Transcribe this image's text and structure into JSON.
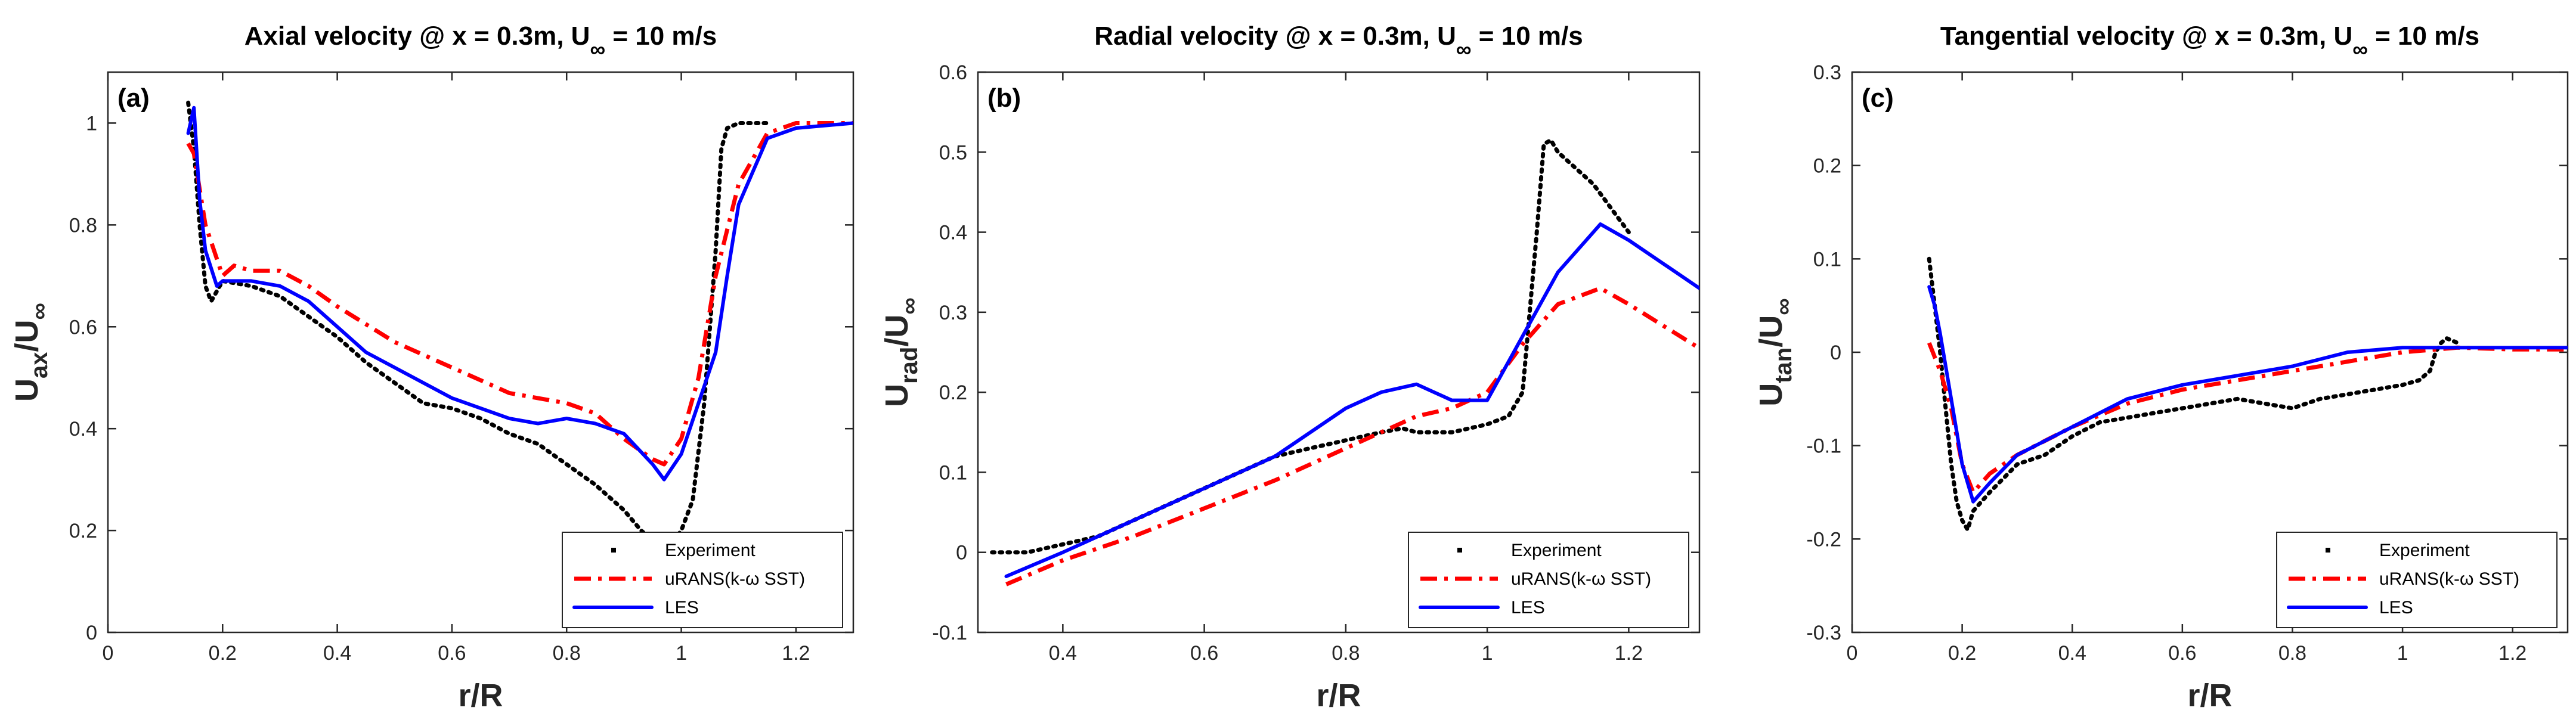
{
  "chart_data": [
    {
      "type": "line",
      "panel_label": "(a)",
      "title": "Axial velocity @ x = 0.3m, U",
      "title_sub": "∞",
      "title_end": " = 10 m/s",
      "xlabel": "r/R",
      "ylabel_main": "U",
      "ylabel_sub": "ax",
      "ylabel_mid": "/U",
      "ylabel_end": "∞",
      "xlim": [
        0,
        1.3
      ],
      "ylim": [
        0,
        1.1
      ],
      "xticks": [
        "0",
        "0.2",
        "0.4",
        "0.6",
        "0.8",
        "1",
        "1.2"
      ],
      "yticks": [
        "0",
        "0.2",
        "0.4",
        "0.6",
        "0.8",
        "1"
      ],
      "legend_position": "bottom-right",
      "series": [
        {
          "name": "Experiment",
          "style": "dotted",
          "color": "#000000",
          "x": [
            0.14,
            0.15,
            0.16,
            0.17,
            0.18,
            0.2,
            0.25,
            0.3,
            0.35,
            0.4,
            0.45,
            0.5,
            0.55,
            0.6,
            0.65,
            0.7,
            0.75,
            0.8,
            0.85,
            0.9,
            0.93,
            0.95,
            0.98,
            1.0,
            1.02,
            1.04,
            1.06,
            1.07,
            1.08,
            1.1,
            1.15
          ],
          "y": [
            1.04,
            0.95,
            0.8,
            0.68,
            0.65,
            0.69,
            0.68,
            0.66,
            0.62,
            0.58,
            0.53,
            0.49,
            0.45,
            0.44,
            0.42,
            0.39,
            0.37,
            0.33,
            0.29,
            0.24,
            0.2,
            0.18,
            0.17,
            0.2,
            0.26,
            0.45,
            0.75,
            0.95,
            0.99,
            1.0,
            1.0
          ]
        },
        {
          "name": "uRANS(k-ω SST)",
          "style": "dashdot",
          "color": "#ff0000",
          "x": [
            0.14,
            0.15,
            0.17,
            0.2,
            0.22,
            0.25,
            0.3,
            0.35,
            0.4,
            0.5,
            0.6,
            0.7,
            0.8,
            0.85,
            0.9,
            0.95,
            0.97,
            1.0,
            1.03,
            1.06,
            1.1,
            1.15,
            1.2,
            1.3
          ],
          "y": [
            0.96,
            0.94,
            0.8,
            0.7,
            0.72,
            0.71,
            0.71,
            0.68,
            0.64,
            0.57,
            0.52,
            0.47,
            0.45,
            0.43,
            0.38,
            0.34,
            0.33,
            0.38,
            0.5,
            0.7,
            0.88,
            0.98,
            1.0,
            1.0
          ]
        },
        {
          "name": "LES",
          "style": "solid",
          "color": "#0000ff",
          "x": [
            0.14,
            0.15,
            0.16,
            0.17,
            0.19,
            0.2,
            0.25,
            0.3,
            0.35,
            0.4,
            0.45,
            0.5,
            0.6,
            0.7,
            0.75,
            0.8,
            0.85,
            0.9,
            0.95,
            0.97,
            1.0,
            1.03,
            1.06,
            1.08,
            1.1,
            1.15,
            1.2,
            1.3
          ],
          "y": [
            0.98,
            1.03,
            0.85,
            0.75,
            0.68,
            0.69,
            0.69,
            0.68,
            0.65,
            0.6,
            0.55,
            0.52,
            0.46,
            0.42,
            0.41,
            0.42,
            0.41,
            0.39,
            0.33,
            0.3,
            0.35,
            0.45,
            0.55,
            0.7,
            0.84,
            0.97,
            0.99,
            1.0
          ]
        }
      ]
    },
    {
      "type": "line",
      "panel_label": "(b)",
      "title": "Radial velocity @ x = 0.3m, U",
      "title_sub": "∞",
      "title_end": " = 10 m/s",
      "xlabel": "r/R",
      "ylabel_main": "U",
      "ylabel_sub": "rad",
      "ylabel_mid": "/U",
      "ylabel_end": "∞",
      "xlim": [
        0.28,
        1.3
      ],
      "ylim": [
        -0.1,
        0.6
      ],
      "xticks": [
        "0.4",
        "0.6",
        "0.8",
        "1",
        "1.2"
      ],
      "yticks": [
        "-0.1",
        "0",
        "0.1",
        "0.2",
        "0.3",
        "0.4",
        "0.5",
        "0.6"
      ],
      "legend_position": "bottom-right",
      "series": [
        {
          "name": "Experiment",
          "style": "dotted",
          "color": "#000000",
          "x": [
            0.3,
            0.35,
            0.4,
            0.45,
            0.5,
            0.55,
            0.6,
            0.65,
            0.7,
            0.75,
            0.8,
            0.85,
            0.88,
            0.9,
            0.95,
            1.0,
            1.03,
            1.05,
            1.07,
            1.08,
            1.09,
            1.1,
            1.15,
            1.2
          ],
          "y": [
            0.0,
            0.0,
            0.01,
            0.02,
            0.04,
            0.06,
            0.08,
            0.1,
            0.12,
            0.13,
            0.14,
            0.15,
            0.155,
            0.15,
            0.15,
            0.16,
            0.17,
            0.2,
            0.4,
            0.51,
            0.515,
            0.5,
            0.46,
            0.4
          ]
        },
        {
          "name": "uRANS(k-ω SST)",
          "style": "dashdot",
          "color": "#ff0000",
          "x": [
            0.32,
            0.4,
            0.5,
            0.6,
            0.7,
            0.8,
            0.9,
            0.95,
            1.0,
            1.05,
            1.1,
            1.16,
            1.2,
            1.3
          ],
          "y": [
            -0.04,
            -0.01,
            0.02,
            0.055,
            0.09,
            0.13,
            0.17,
            0.18,
            0.2,
            0.26,
            0.31,
            0.33,
            0.31,
            0.255
          ]
        },
        {
          "name": "LES",
          "style": "solid",
          "color": "#0000ff",
          "x": [
            0.32,
            0.4,
            0.5,
            0.6,
            0.7,
            0.8,
            0.85,
            0.9,
            0.95,
            1.0,
            1.05,
            1.1,
            1.16,
            1.2,
            1.3
          ],
          "y": [
            -0.03,
            0.0,
            0.04,
            0.08,
            0.12,
            0.18,
            0.2,
            0.21,
            0.19,
            0.19,
            0.27,
            0.35,
            0.41,
            0.39,
            0.33
          ]
        }
      ]
    },
    {
      "type": "line",
      "panel_label": "(c)",
      "title": "Tangential velocity @ x = 0.3m, U",
      "title_sub": "∞",
      "title_end": " = 10 m/s",
      "xlabel": "r/R",
      "ylabel_main": "U",
      "ylabel_sub": "tan",
      "ylabel_mid": "/U",
      "ylabel_end": "∞",
      "xlim": [
        0,
        1.3
      ],
      "ylim": [
        -0.3,
        0.3
      ],
      "xticks": [
        "0",
        "0.2",
        "0.4",
        "0.6",
        "0.8",
        "1",
        "1.2"
      ],
      "yticks": [
        "-0.3",
        "-0.2",
        "-0.1",
        "0",
        "0.1",
        "0.2",
        "0.3"
      ],
      "legend_position": "bottom-right",
      "series": [
        {
          "name": "Experiment",
          "style": "dotted",
          "color": "#000000",
          "x": [
            0.14,
            0.15,
            0.16,
            0.17,
            0.18,
            0.19,
            0.2,
            0.21,
            0.22,
            0.25,
            0.3,
            0.35,
            0.4,
            0.45,
            0.5,
            0.55,
            0.6,
            0.65,
            0.7,
            0.75,
            0.8,
            0.85,
            0.9,
            0.95,
            1.0,
            1.03,
            1.05,
            1.06,
            1.07,
            1.08,
            1.1
          ],
          "y": [
            0.1,
            0.05,
            0.0,
            -0.06,
            -0.12,
            -0.16,
            -0.18,
            -0.19,
            -0.17,
            -0.15,
            -0.12,
            -0.11,
            -0.09,
            -0.075,
            -0.07,
            -0.065,
            -0.06,
            -0.055,
            -0.05,
            -0.055,
            -0.06,
            -0.05,
            -0.045,
            -0.04,
            -0.035,
            -0.03,
            -0.02,
            0.0,
            0.01,
            0.015,
            0.01
          ]
        },
        {
          "name": "uRANS(k-ω SST)",
          "style": "dashdot",
          "color": "#ff0000",
          "x": [
            0.14,
            0.16,
            0.18,
            0.2,
            0.22,
            0.25,
            0.3,
            0.35,
            0.4,
            0.5,
            0.6,
            0.7,
            0.8,
            0.9,
            1.0,
            1.1,
            1.2,
            1.3
          ],
          "y": [
            0.01,
            -0.02,
            -0.06,
            -0.12,
            -0.15,
            -0.13,
            -0.11,
            -0.095,
            -0.08,
            -0.055,
            -0.04,
            -0.03,
            -0.02,
            -0.01,
            0.0,
            0.005,
            0.003,
            0.003
          ]
        },
        {
          "name": "LES",
          "style": "solid",
          "color": "#0000ff",
          "x": [
            0.14,
            0.15,
            0.16,
            0.18,
            0.2,
            0.22,
            0.25,
            0.3,
            0.35,
            0.4,
            0.5,
            0.6,
            0.7,
            0.8,
            0.9,
            1.0,
            1.1,
            1.2,
            1.3
          ],
          "y": [
            0.07,
            0.05,
            0.02,
            -0.05,
            -0.12,
            -0.16,
            -0.14,
            -0.11,
            -0.095,
            -0.08,
            -0.05,
            -0.035,
            -0.025,
            -0.015,
            0.0,
            0.005,
            0.005,
            0.005,
            0.005
          ]
        }
      ]
    }
  ]
}
